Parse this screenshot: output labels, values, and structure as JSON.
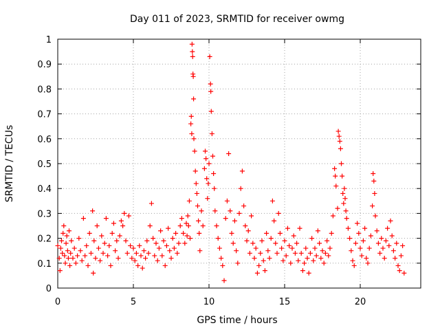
{
  "chart_data": {
    "type": "scatter",
    "title": "Day 011 of 2023, SRMTID for receiver owmg",
    "xlabel": "GPS time / hours",
    "ylabel": "SRMTID / TECUs",
    "xlim": [
      0,
      24.0
    ],
    "ylim": [
      0,
      1
    ],
    "xticks": [
      0,
      5,
      10,
      15,
      20
    ],
    "yticks": [
      0,
      0.1,
      0.2,
      0.3,
      0.4,
      0.5,
      0.6,
      0.7,
      0.8,
      0.9,
      1
    ],
    "xtick_labels": [
      "0",
      "5",
      "10",
      "15",
      "20"
    ],
    "ytick_labels": [
      "0",
      "0.1",
      "0.2",
      "0.3",
      "0.4",
      "0.5",
      "0.6",
      "0.7",
      "0.8",
      "0.9",
      "1"
    ],
    "grid": true,
    "marker": "+",
    "marker_color": "#ff0000",
    "series": [
      {
        "name": "owmg",
        "points": [
          [
            0.0,
            0.17
          ],
          [
            0.1,
            0.12
          ],
          [
            0.15,
            0.07
          ],
          [
            0.2,
            0.16
          ],
          [
            0.25,
            0.19
          ],
          [
            0.3,
            0.14
          ],
          [
            0.35,
            0.22
          ],
          [
            0.4,
            0.25
          ],
          [
            0.45,
            0.13
          ],
          [
            0.5,
            0.1
          ],
          [
            0.55,
            0.18
          ],
          [
            0.6,
            0.21
          ],
          [
            0.65,
            0.15
          ],
          [
            0.7,
            0.12
          ],
          [
            0.75,
            0.23
          ],
          [
            0.8,
            0.09
          ],
          [
            0.85,
            0.14
          ],
          [
            0.9,
            0.19
          ],
          [
            1.0,
            0.12
          ],
          [
            1.1,
            0.16
          ],
          [
            1.2,
            0.1
          ],
          [
            1.3,
            0.13
          ],
          [
            1.4,
            0.2
          ],
          [
            1.5,
            0.15
          ],
          [
            1.6,
            0.11
          ],
          [
            1.7,
            0.28
          ],
          [
            1.8,
            0.13
          ],
          [
            1.9,
            0.17
          ],
          [
            2.0,
            0.09
          ],
          [
            2.1,
            0.22
          ],
          [
            2.2,
            0.14
          ],
          [
            2.3,
            0.31
          ],
          [
            2.35,
            0.06
          ],
          [
            2.4,
            0.19
          ],
          [
            2.5,
            0.12
          ],
          [
            2.6,
            0.25
          ],
          [
            2.7,
            0.16
          ],
          [
            2.8,
            0.11
          ],
          [
            2.9,
            0.21
          ],
          [
            3.0,
            0.14
          ],
          [
            3.1,
            0.18
          ],
          [
            3.2,
            0.28
          ],
          [
            3.3,
            0.13
          ],
          [
            3.4,
            0.17
          ],
          [
            3.5,
            0.09
          ],
          [
            3.6,
            0.22
          ],
          [
            3.7,
            0.26
          ],
          [
            3.8,
            0.15
          ],
          [
            3.9,
            0.19
          ],
          [
            4.0,
            0.12
          ],
          [
            4.1,
            0.21
          ],
          [
            4.2,
            0.27
          ],
          [
            4.3,
            0.25
          ],
          [
            4.4,
            0.3
          ],
          [
            4.5,
            0.19
          ],
          [
            4.6,
            0.14
          ],
          [
            4.7,
            0.29
          ],
          [
            4.8,
            0.17
          ],
          [
            4.9,
            0.12
          ],
          [
            5.0,
            0.16
          ],
          [
            5.1,
            0.11
          ],
          [
            5.2,
            0.14
          ],
          [
            5.3,
            0.09
          ],
          [
            5.4,
            0.17
          ],
          [
            5.5,
            0.13
          ],
          [
            5.6,
            0.08
          ],
          [
            5.7,
            0.15
          ],
          [
            5.8,
            0.12
          ],
          [
            5.9,
            0.19
          ],
          [
            6.0,
            0.14
          ],
          [
            6.1,
            0.25
          ],
          [
            6.2,
            0.34
          ],
          [
            6.3,
            0.2
          ],
          [
            6.4,
            0.13
          ],
          [
            6.5,
            0.18
          ],
          [
            6.6,
            0.11
          ],
          [
            6.7,
            0.16
          ],
          [
            6.8,
            0.23
          ],
          [
            6.9,
            0.13
          ],
          [
            7.0,
            0.19
          ],
          [
            7.1,
            0.09
          ],
          [
            7.2,
            0.17
          ],
          [
            7.3,
            0.24
          ],
          [
            7.4,
            0.15
          ],
          [
            7.5,
            0.12
          ],
          [
            7.6,
            0.2
          ],
          [
            7.7,
            0.16
          ],
          [
            7.8,
            0.22
          ],
          [
            7.9,
            0.14
          ],
          [
            8.0,
            0.18
          ],
          [
            8.1,
            0.25
          ],
          [
            8.2,
            0.28
          ],
          [
            8.3,
            0.22
          ],
          [
            8.4,
            0.18
          ],
          [
            8.5,
            0.26
          ],
          [
            8.55,
            0.21
          ],
          [
            8.6,
            0.29
          ],
          [
            8.65,
            0.25
          ],
          [
            8.7,
            0.35
          ],
          [
            8.75,
            0.2
          ],
          [
            8.8,
            0.66
          ],
          [
            8.83,
            0.69
          ],
          [
            8.86,
            0.62
          ],
          [
            8.88,
            0.98
          ],
          [
            8.9,
            0.95
          ],
          [
            8.92,
            0.93
          ],
          [
            8.94,
            0.86
          ],
          [
            8.96,
            0.85
          ],
          [
            8.98,
            0.76
          ],
          [
            9.0,
            0.6
          ],
          [
            9.05,
            0.55
          ],
          [
            9.1,
            0.47
          ],
          [
            9.15,
            0.42
          ],
          [
            9.2,
            0.38
          ],
          [
            9.25,
            0.33
          ],
          [
            9.3,
            0.27
          ],
          [
            9.35,
            0.22
          ],
          [
            9.4,
            0.15
          ],
          [
            9.5,
            0.31
          ],
          [
            9.6,
            0.25
          ],
          [
            9.7,
            0.48
          ],
          [
            9.75,
            0.55
          ],
          [
            9.8,
            0.52
          ],
          [
            9.85,
            0.44
          ],
          [
            9.9,
            0.36
          ],
          [
            9.95,
            0.42
          ],
          [
            10.0,
            0.5
          ],
          [
            10.05,
            0.93
          ],
          [
            10.1,
            0.82
          ],
          [
            10.12,
            0.79
          ],
          [
            10.15,
            0.71
          ],
          [
            10.2,
            0.62
          ],
          [
            10.25,
            0.53
          ],
          [
            10.3,
            0.46
          ],
          [
            10.35,
            0.4
          ],
          [
            10.4,
            0.31
          ],
          [
            10.5,
            0.25
          ],
          [
            10.6,
            0.2
          ],
          [
            10.7,
            0.16
          ],
          [
            10.8,
            0.12
          ],
          [
            10.9,
            0.09
          ],
          [
            11.0,
            0.03
          ],
          [
            11.1,
            0.28
          ],
          [
            11.2,
            0.35
          ],
          [
            11.3,
            0.54
          ],
          [
            11.4,
            0.31
          ],
          [
            11.5,
            0.22
          ],
          [
            11.6,
            0.18
          ],
          [
            11.7,
            0.27
          ],
          [
            11.8,
            0.15
          ],
          [
            11.9,
            0.1
          ],
          [
            12.0,
            0.3
          ],
          [
            12.1,
            0.4
          ],
          [
            12.2,
            0.47
          ],
          [
            12.3,
            0.33
          ],
          [
            12.4,
            0.25
          ],
          [
            12.5,
            0.19
          ],
          [
            12.6,
            0.23
          ],
          [
            12.7,
            0.14
          ],
          [
            12.8,
            0.29
          ],
          [
            12.9,
            0.18
          ],
          [
            13.0,
            0.12
          ],
          [
            13.1,
            0.16
          ],
          [
            13.2,
            0.06
          ],
          [
            13.3,
            0.09
          ],
          [
            13.4,
            0.14
          ],
          [
            13.5,
            0.19
          ],
          [
            13.6,
            0.11
          ],
          [
            13.7,
            0.07
          ],
          [
            13.8,
            0.22
          ],
          [
            13.9,
            0.15
          ],
          [
            14.0,
            0.12
          ],
          [
            14.1,
            0.2
          ],
          [
            14.2,
            0.35
          ],
          [
            14.3,
            0.27
          ],
          [
            14.4,
            0.18
          ],
          [
            14.5,
            0.14
          ],
          [
            14.6,
            0.3
          ],
          [
            14.7,
            0.22
          ],
          [
            14.8,
            0.16
          ],
          [
            14.9,
            0.11
          ],
          [
            15.0,
            0.19
          ],
          [
            15.1,
            0.13
          ],
          [
            15.2,
            0.24
          ],
          [
            15.3,
            0.17
          ],
          [
            15.4,
            0.1
          ],
          [
            15.5,
            0.16
          ],
          [
            15.6,
            0.21
          ],
          [
            15.7,
            0.14
          ],
          [
            15.8,
            0.18
          ],
          [
            15.9,
            0.11
          ],
          [
            16.0,
            0.24
          ],
          [
            16.1,
            0.14
          ],
          [
            16.2,
            0.07
          ],
          [
            16.3,
            0.1
          ],
          [
            16.4,
            0.16
          ],
          [
            16.5,
            0.12
          ],
          [
            16.6,
            0.06
          ],
          [
            16.7,
            0.14
          ],
          [
            16.8,
            0.2
          ],
          [
            16.9,
            0.11
          ],
          [
            17.0,
            0.16
          ],
          [
            17.1,
            0.13
          ],
          [
            17.2,
            0.23
          ],
          [
            17.3,
            0.18
          ],
          [
            17.4,
            0.12
          ],
          [
            17.5,
            0.15
          ],
          [
            17.6,
            0.1
          ],
          [
            17.7,
            0.14
          ],
          [
            17.8,
            0.19
          ],
          [
            17.9,
            0.13
          ],
          [
            18.0,
            0.16
          ],
          [
            18.1,
            0.22
          ],
          [
            18.2,
            0.29
          ],
          [
            18.3,
            0.48
          ],
          [
            18.35,
            0.45
          ],
          [
            18.4,
            0.41
          ],
          [
            18.5,
            0.32
          ],
          [
            18.55,
            0.63
          ],
          [
            18.6,
            0.61
          ],
          [
            18.65,
            0.59
          ],
          [
            18.7,
            0.56
          ],
          [
            18.75,
            0.5
          ],
          [
            18.8,
            0.45
          ],
          [
            18.85,
            0.38
          ],
          [
            18.9,
            0.34
          ],
          [
            18.95,
            0.4
          ],
          [
            19.0,
            0.36
          ],
          [
            19.05,
            0.31
          ],
          [
            19.1,
            0.28
          ],
          [
            19.2,
            0.24
          ],
          [
            19.3,
            0.2
          ],
          [
            19.4,
            0.15
          ],
          [
            19.5,
            0.11
          ],
          [
            19.6,
            0.09
          ],
          [
            19.7,
            0.18
          ],
          [
            19.8,
            0.26
          ],
          [
            19.9,
            0.22
          ],
          [
            20.0,
            0.16
          ],
          [
            20.1,
            0.13
          ],
          [
            20.2,
            0.19
          ],
          [
            20.3,
            0.24
          ],
          [
            20.4,
            0.12
          ],
          [
            20.5,
            0.1
          ],
          [
            20.6,
            0.16
          ],
          [
            20.7,
            0.21
          ],
          [
            20.8,
            0.33
          ],
          [
            20.85,
            0.46
          ],
          [
            20.9,
            0.43
          ],
          [
            20.95,
            0.38
          ],
          [
            21.0,
            0.29
          ],
          [
            21.1,
            0.23
          ],
          [
            21.2,
            0.18
          ],
          [
            21.3,
            0.14
          ],
          [
            21.4,
            0.2
          ],
          [
            21.5,
            0.16
          ],
          [
            21.6,
            0.12
          ],
          [
            21.7,
            0.19
          ],
          [
            21.8,
            0.24
          ],
          [
            21.9,
            0.17
          ],
          [
            22.0,
            0.27
          ],
          [
            22.1,
            0.21
          ],
          [
            22.2,
            0.15
          ],
          [
            22.3,
            0.12
          ],
          [
            22.4,
            0.18
          ],
          [
            22.5,
            0.09
          ],
          [
            22.6,
            0.07
          ],
          [
            22.7,
            0.13
          ],
          [
            22.8,
            0.17
          ],
          [
            22.9,
            0.06
          ]
        ]
      }
    ]
  }
}
